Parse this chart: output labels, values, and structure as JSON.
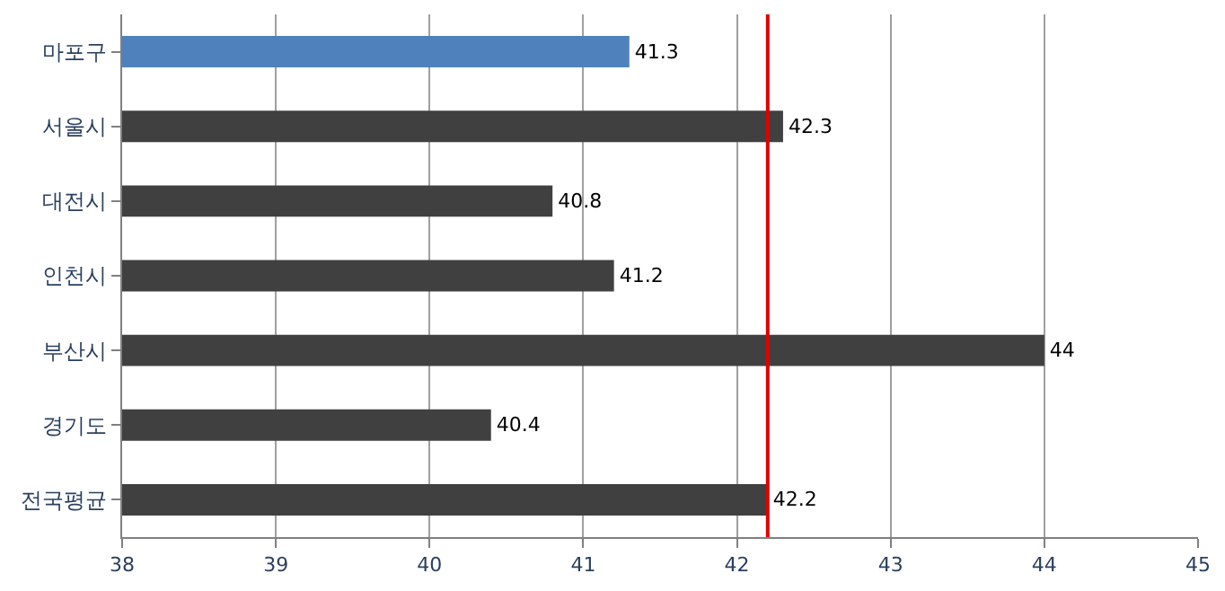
{
  "chart_data": {
    "type": "bar",
    "orientation": "horizontal",
    "categories": [
      "마포구",
      "서울시",
      "대전시",
      "인천시",
      "부산시",
      "경기도",
      "전국평균"
    ],
    "values": [
      41.3,
      42.3,
      40.8,
      41.2,
      44,
      40.4,
      42.2
    ],
    "colors": [
      "#4f81bd",
      "#404040",
      "#404040",
      "#404040",
      "#404040",
      "#404040",
      "#404040"
    ],
    "xlim": [
      38,
      45
    ],
    "xticks": [
      38,
      39,
      40,
      41,
      42,
      43,
      44,
      45
    ],
    "grid": "x",
    "data_labels": true,
    "ref_lines": [
      {
        "axis": "x",
        "value": 42.2,
        "color": "#e00000"
      }
    ]
  }
}
